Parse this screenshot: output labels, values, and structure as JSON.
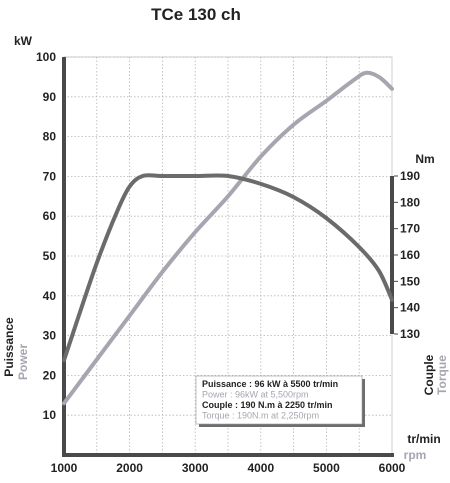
{
  "chart_data": {
    "type": "line",
    "title": "TCe 130 ch",
    "x_unit": "tr/min",
    "x_unit_alt": "rpm",
    "left_unit": "kW",
    "right_unit": "Nm",
    "left_axis_label": "Puissance",
    "left_axis_label_alt": "Power",
    "right_axis_label": "Couple",
    "right_axis_label_alt": "Torque",
    "x_ticks": [
      "1000",
      "2000",
      "3000",
      "4000",
      "5000",
      "6000"
    ],
    "y_ticks": [
      "10",
      "20",
      "30",
      "40",
      "50",
      "60",
      "70",
      "80",
      "90",
      "100"
    ],
    "y2_ticks": [
      "130",
      "140",
      "150",
      "160",
      "170",
      "180",
      "190"
    ],
    "xlim": [
      1000,
      6000
    ],
    "ylim": [
      0,
      100
    ],
    "y2lim": [
      130,
      190
    ],
    "grid": true,
    "series": [
      {
        "name": "Puissance",
        "axis": "left",
        "color": "#a6a6b0",
        "x": [
          1000,
          1500,
          2000,
          2500,
          3000,
          3500,
          4000,
          4500,
          5000,
          5400,
          5600,
          5800,
          6000
        ],
        "y": [
          13,
          24,
          35,
          46,
          56,
          65,
          75,
          83,
          89,
          94,
          96,
          95,
          92
        ]
      },
      {
        "name": "Couple",
        "axis": "right",
        "color": "#6b6b6b",
        "x": [
          1000,
          1200,
          1500,
          1800,
          2000,
          2200,
          2500,
          3000,
          3500,
          4000,
          4500,
          5000,
          5500,
          5800,
          6000
        ],
        "y": [
          120,
          135,
          157,
          176,
          186,
          190,
          190,
          190,
          190,
          187,
          182,
          174,
          163,
          154,
          143
        ]
      }
    ],
    "legend": {
      "placement": "bottom-right",
      "lines": [
        {
          "text": "Puissance : 96 kW à 5500 tr/min",
          "color": "#222222",
          "bold": true
        },
        {
          "text": "Power : 96kW at 5,500rpm",
          "color": "#a6a6b0",
          "bold": false
        },
        {
          "text": "Couple : 190 N.m à 2250 tr/min",
          "color": "#222222",
          "bold": true
        },
        {
          "text": "Torque : 190N.m at 2,250rpm",
          "color": "#a6a6b0",
          "bold": false
        }
      ]
    }
  }
}
